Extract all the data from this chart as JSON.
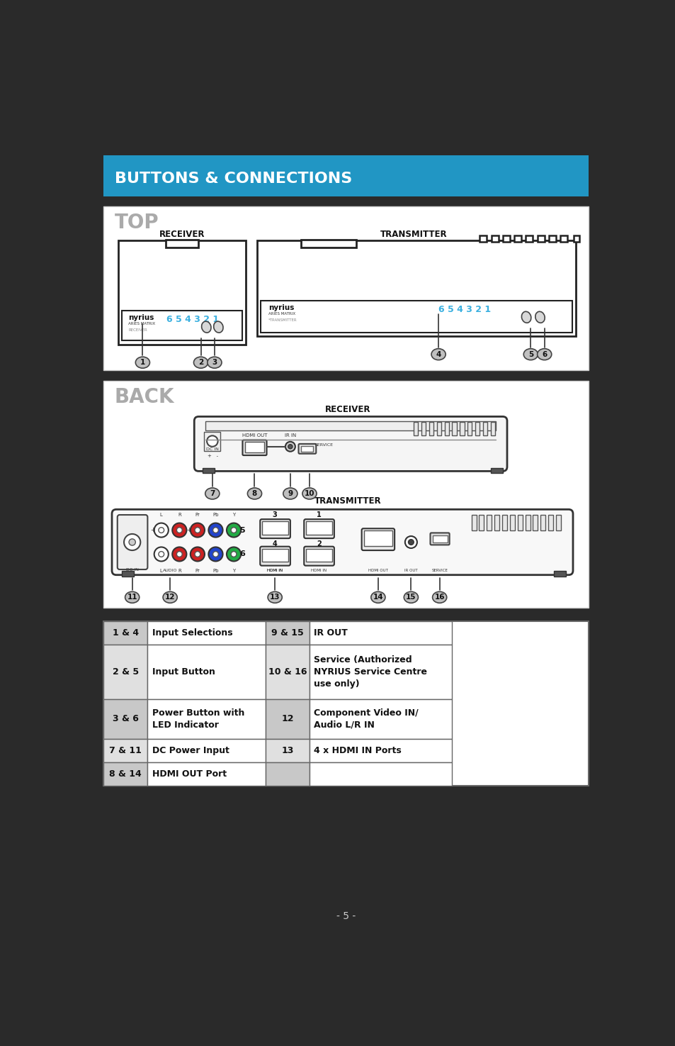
{
  "page_bg": "#2a2a2a",
  "header_bg": "#2196c4",
  "header_text": "BUTTONS & CONNECTIONS",
  "header_text_color": "#ffffff",
  "section_top_label": "TOP",
  "section_back_label": "BACK",
  "receiver_label": "RECEIVER",
  "transmitter_label": "TRANSMITTER",
  "cyan_color": "#3ab0e0",
  "table_rows": [
    [
      "1 & 4",
      "Input Selections",
      "9 & 15",
      "IR OUT"
    ],
    [
      "2 & 5",
      "Input Button",
      "10 & 16",
      "Service (Authorized\nNYRIUS Service Centre\nuse only)"
    ],
    [
      "3 & 6",
      "Power Button with\nLED Indicator",
      "12",
      "Component Video IN/\nAudio L/R IN"
    ],
    [
      "7 & 11",
      "DC Power Input",
      "13",
      "4 x HDMI IN Ports"
    ],
    [
      "8 & 14",
      "HDMI OUT Port",
      "",
      ""
    ]
  ],
  "footer_text": "- 5 -"
}
